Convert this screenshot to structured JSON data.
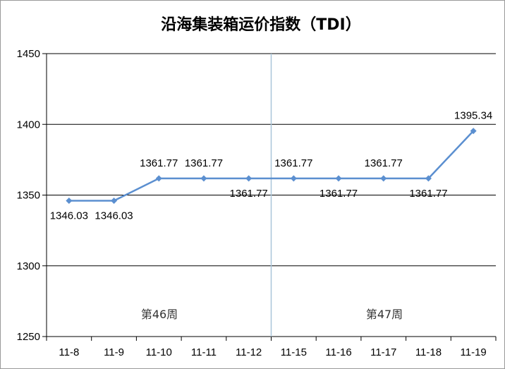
{
  "chart_data": {
    "type": "line",
    "title": "沿海集装箱运价指数（TDI）",
    "xlabel": "",
    "ylabel": "",
    "categories": [
      "11-8",
      "11-9",
      "11-10",
      "11-11",
      "11-12",
      "11-15",
      "11-16",
      "11-17",
      "11-18",
      "11-19"
    ],
    "series": [
      {
        "values": [
          1346.03,
          1346.03,
          1361.77,
          1361.77,
          1361.77,
          1361.77,
          1361.77,
          1361.77,
          1361.77,
          1395.34
        ],
        "labels": [
          "1346.03",
          "1346.03",
          "1361.77",
          "1361.77",
          "1361.77",
          "1361.77",
          "1361.77",
          "1361.77",
          "1361.77",
          "1395.34"
        ],
        "label_positions": [
          "below",
          "below",
          "above",
          "above",
          "below",
          "above",
          "below",
          "above",
          "below",
          "above"
        ],
        "color": "#5b8fd0"
      }
    ],
    "ylim": [
      1250,
      1450
    ],
    "yticks": [
      "1250",
      "1300",
      "1350",
      "1400",
      "1450"
    ],
    "grid": true,
    "legend": "none",
    "week_divider_after": "11-12",
    "week_labels": [
      "第46周",
      "第47周"
    ],
    "divider_color": "#a9c6d9",
    "grid_color": "#000000"
  }
}
